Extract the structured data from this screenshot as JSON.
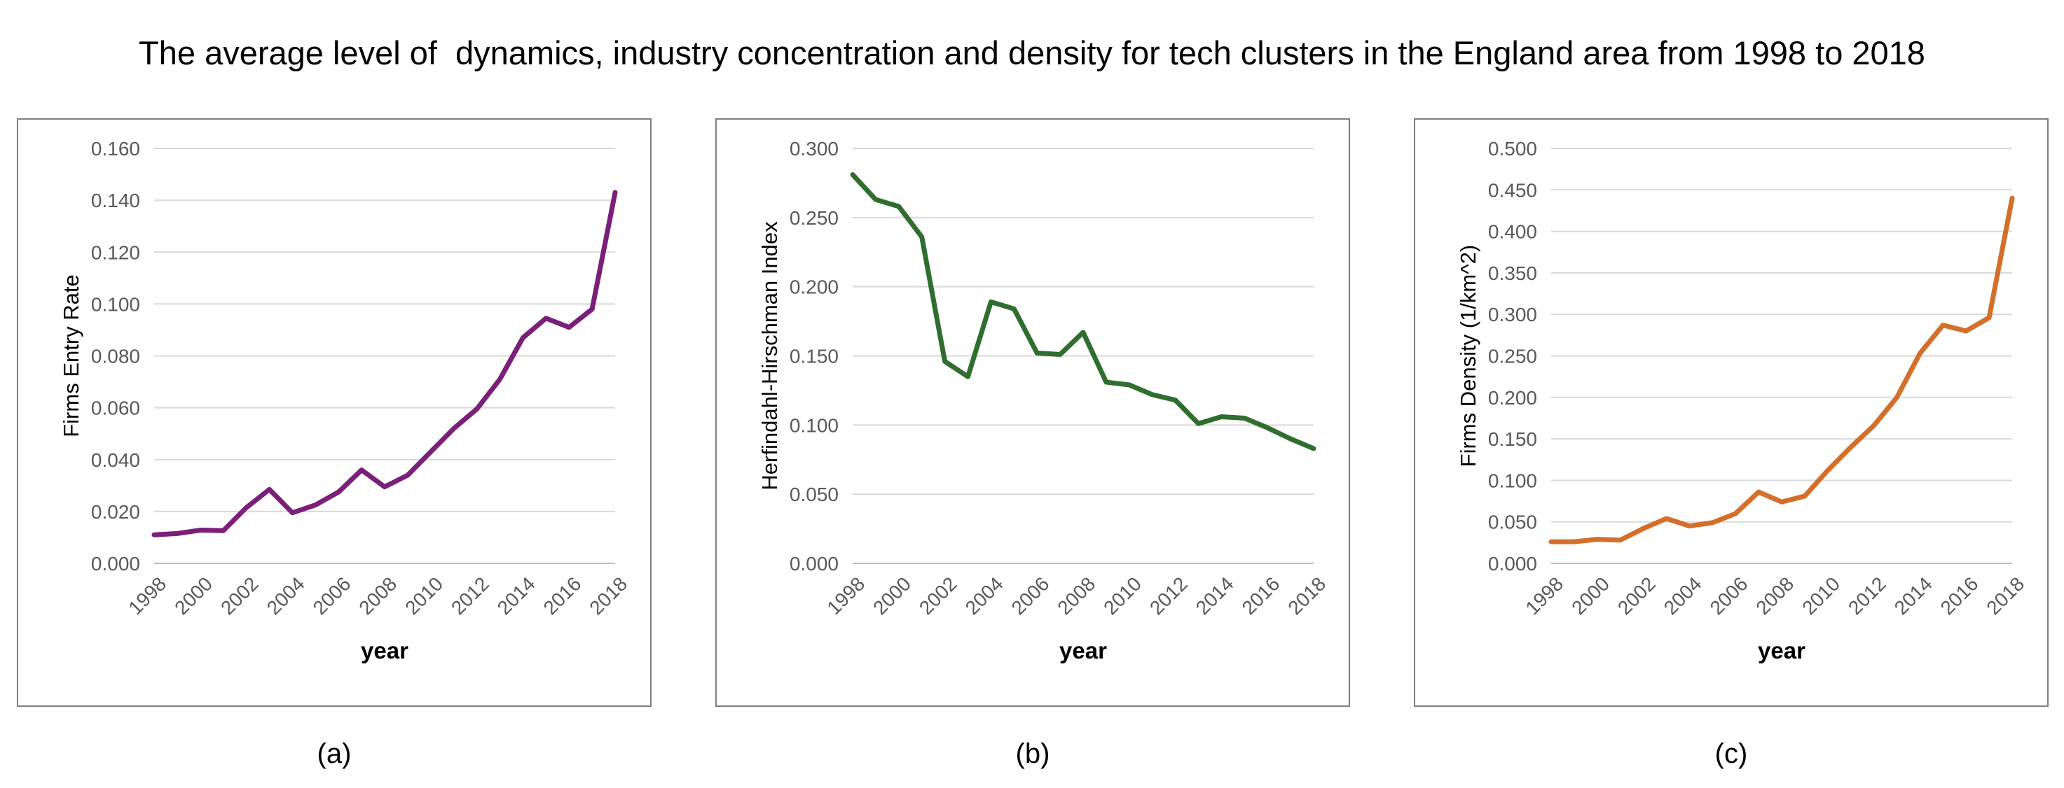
{
  "title": "The average level of  dynamics, industry concentration and density for tech clusters in the England area from 1998 to 2018",
  "chart_data": [
    {
      "type": "line",
      "caption": "(a)",
      "xlabel": "year",
      "ylabel": "Firms Entry Rate",
      "x": [
        1998,
        1999,
        2000,
        2001,
        2002,
        2003,
        2004,
        2005,
        2006,
        2007,
        2008,
        2009,
        2010,
        2011,
        2012,
        2013,
        2014,
        2015,
        2016,
        2017,
        2018
      ],
      "xticks": [
        "1998",
        "2000",
        "2002",
        "2004",
        "2006",
        "2008",
        "2010",
        "2012",
        "2014",
        "2016",
        "2018"
      ],
      "yticks": [
        "0.000",
        "0.020",
        "0.040",
        "0.060",
        "0.080",
        "0.100",
        "0.120",
        "0.140",
        "0.160"
      ],
      "ylim": [
        0,
        0.16
      ],
      "grid": true,
      "series": [
        {
          "color": "#7a1f7a",
          "values": [
            0.011,
            0.0115,
            0.0128,
            0.0126,
            0.0215,
            0.0285,
            0.0195,
            0.0225,
            0.0275,
            0.036,
            0.0295,
            0.034,
            0.043,
            0.052,
            0.0595,
            0.071,
            0.087,
            0.0945,
            0.091,
            0.098,
            0.143
          ]
        }
      ]
    },
    {
      "type": "line",
      "caption": "(b)",
      "xlabel": "year",
      "ylabel": "Herfindahl-Hirschman Index",
      "x": [
        1998,
        1999,
        2000,
        2001,
        2002,
        2003,
        2004,
        2005,
        2006,
        2007,
        2008,
        2009,
        2010,
        2011,
        2012,
        2013,
        2014,
        2015,
        2016,
        2017,
        2018
      ],
      "xticks": [
        "1998",
        "2000",
        "2002",
        "2004",
        "2006",
        "2008",
        "2010",
        "2012",
        "2014",
        "2016",
        "2018"
      ],
      "yticks": [
        "0.000",
        "0.050",
        "0.100",
        "0.150",
        "0.200",
        "0.250",
        "0.300"
      ],
      "ylim": [
        0,
        0.3
      ],
      "grid": true,
      "series": [
        {
          "color": "#2f6e2f",
          "values": [
            0.281,
            0.263,
            0.258,
            0.236,
            0.146,
            0.135,
            0.189,
            0.184,
            0.152,
            0.151,
            0.167,
            0.131,
            0.129,
            0.122,
            0.118,
            0.101,
            0.106,
            0.105,
            0.098,
            0.09,
            0.083
          ]
        }
      ]
    },
    {
      "type": "line",
      "caption": "(c)",
      "xlabel": "year",
      "ylabel": "Firms Density (1/km^2)",
      "x": [
        1998,
        1999,
        2000,
        2001,
        2002,
        2003,
        2004,
        2005,
        2006,
        2007,
        2008,
        2009,
        2010,
        2011,
        2012,
        2013,
        2014,
        2015,
        2016,
        2017,
        2018
      ],
      "xticks": [
        "1998",
        "2000",
        "2002",
        "2004",
        "2006",
        "2008",
        "2010",
        "2012",
        "2014",
        "2016",
        "2018"
      ],
      "yticks": [
        "0.000",
        "0.050",
        "0.100",
        "0.150",
        "0.200",
        "0.250",
        "0.300",
        "0.350",
        "0.400",
        "0.450",
        "0.500"
      ],
      "ylim": [
        0,
        0.5
      ],
      "grid": true,
      "series": [
        {
          "color": "#d46f2a",
          "values": [
            0.026,
            0.026,
            0.029,
            0.028,
            0.042,
            0.054,
            0.045,
            0.049,
            0.06,
            0.086,
            0.074,
            0.081,
            0.112,
            0.14,
            0.166,
            0.2,
            0.253,
            0.287,
            0.28,
            0.296,
            0.44
          ]
        }
      ]
    }
  ]
}
